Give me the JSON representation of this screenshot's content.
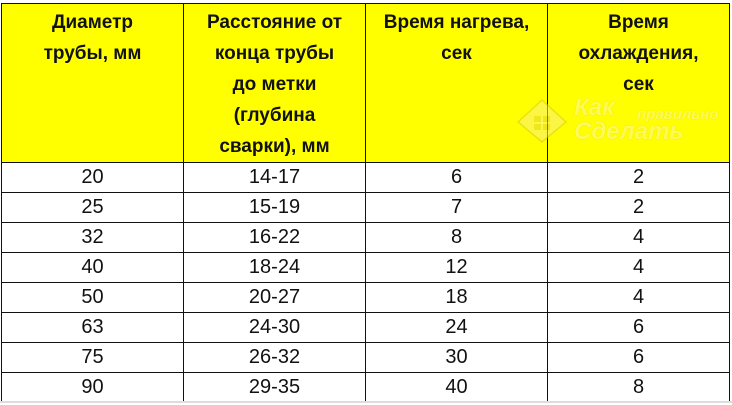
{
  "table": {
    "headers": [
      [
        "Диаметр",
        "трубы, мм"
      ],
      [
        "Расстояние от",
        "конца трубы",
        "до метки",
        "(глубина",
        "сварки), мм"
      ],
      [
        "Время нагрева,",
        "сек"
      ],
      [
        "Время",
        "охлаждения,",
        "сек"
      ]
    ],
    "rows": [
      [
        "20",
        "14-17",
        "6",
        "2"
      ],
      [
        "25",
        "15-19",
        "7",
        "2"
      ],
      [
        "32",
        "16-22",
        "8",
        "4"
      ],
      [
        "40",
        "18-24",
        "12",
        "4"
      ],
      [
        "50",
        "20-27",
        "18",
        "4"
      ],
      [
        "63",
        "24-30",
        "24",
        "6"
      ],
      [
        "75",
        "26-32",
        "30",
        "6"
      ],
      [
        "90",
        "29-35",
        "40",
        "8"
      ]
    ]
  },
  "watermark": {
    "line1": "Как",
    "line2": "Сделать",
    "small": "правильно"
  },
  "colors": {
    "header_bg": "#ffff00",
    "border": "#111111"
  }
}
